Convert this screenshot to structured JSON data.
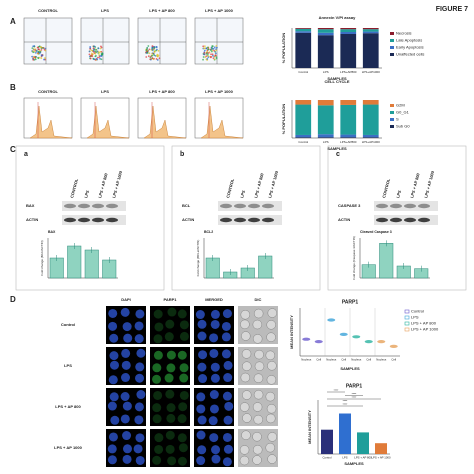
{
  "figure_label": "FIGURE 7",
  "panel_labels": [
    "A",
    "B",
    "C",
    "D"
  ],
  "sample_labels": [
    "CONTROL",
    "LPS",
    "LPS + AP 800",
    "LPS + AP 1000"
  ],
  "annexin": {
    "title": "Annexin V/PI assay",
    "y_label": "% POPULATION",
    "x_label": "SAMPLES",
    "categories": [
      "Control",
      "LPS",
      "LPS+AP800",
      "LPS+AP1000"
    ],
    "ylim": [
      0,
      100
    ],
    "series": [
      {
        "name": "Necrosis",
        "color": "#8b1c2c",
        "values": [
          2,
          3,
          3,
          3
        ]
      },
      {
        "name": "Late Apoptosis",
        "color": "#1f9e9a",
        "values": [
          6,
          9,
          7,
          6
        ]
      },
      {
        "name": "Early Apoptosis",
        "color": "#3b6fc4",
        "values": [
          4,
          6,
          5,
          4
        ]
      },
      {
        "name": "Unaffected cells",
        "color": "#1b2a55",
        "values": [
          88,
          82,
          85,
          87
        ]
      }
    ]
  },
  "cell_cycle": {
    "title": "CELL CYCLE",
    "y_label": "% POPULATION",
    "x_label": "SAMPLES",
    "categories": [
      "Control",
      "LPS",
      "LPS+AP800",
      "LPS+AP1000"
    ],
    "ylim": [
      0,
      100
    ],
    "series": [
      {
        "name": "G2M",
        "color": "#e07b39",
        "values": [
          12,
          14,
          13,
          12
        ]
      },
      {
        "name": "G0_G1",
        "color": "#1f9e9a",
        "values": [
          80,
          76,
          78,
          80
        ]
      },
      {
        "name": "S",
        "color": "#3b6fc4",
        "values": [
          6,
          8,
          7,
          6
        ]
      },
      {
        "name": "Sub G0",
        "color": "#1b2a55",
        "values": [
          2,
          2,
          2,
          2
        ]
      }
    ]
  },
  "blots": [
    {
      "sublabel": "a",
      "bands": [
        "BAX",
        "ACTIN"
      ],
      "chart_title": "BAX",
      "y_label": "Fold change (BAX/ACTIN)",
      "ylim": [
        0,
        2
      ],
      "values": [
        1.0,
        1.6,
        1.4,
        0.9
      ]
    },
    {
      "sublabel": "b",
      "bands": [
        "BCL",
        "ACTIN"
      ],
      "chart_title": "BCL2",
      "y_label": "Fold change (BCL2/ACTIN)",
      "ylim": [
        0,
        2
      ],
      "values": [
        1.0,
        0.3,
        0.5,
        1.1
      ]
    },
    {
      "sublabel": "c",
      "bands": [
        "CASPASE 3",
        "ACTIN"
      ],
      "chart_title": "Cleaved Caspase 3",
      "y_label": "Fold change (Caspase 3/ACTIN)",
      "ylim": [
        0,
        3
      ],
      "values": [
        1.0,
        2.6,
        0.9,
        0.7
      ]
    }
  ],
  "if_columns": [
    "DAPI",
    "PARP1",
    "MERGED",
    "DIC"
  ],
  "if_rows": [
    "Control",
    "LPS",
    "LPS + AP 800",
    "LPS + AP 1000"
  ],
  "parp_scatter": {
    "title": "PARP1",
    "y_label": "MEAN INTENSITY",
    "x_label": "SAMPLES",
    "groups": [
      "Nucleus",
      "Cell"
    ],
    "ylim": [
      0,
      1
    ],
    "series": [
      {
        "name": "Control",
        "color": "#6a5acd",
        "values": [
          0.35,
          0.3
        ]
      },
      {
        "name": "LPS",
        "color": "#3ba3d8",
        "values": [
          0.75,
          0.45
        ]
      },
      {
        "name": "LPS + AP 800",
        "color": "#2bb3a0",
        "values": [
          0.4,
          0.3
        ]
      },
      {
        "name": "LPS + AP 1000",
        "color": "#e6a15a",
        "values": [
          0.3,
          0.2
        ]
      }
    ]
  },
  "parp_bar": {
    "title": "PARP1",
    "y_label": "MEAN INTENSITY",
    "x_label": "SAMPLES",
    "ylim": [
      0,
      1
    ],
    "categories": [
      "Control",
      "LPS",
      "LPS + AP 800",
      "LPS + AP 1000"
    ],
    "values": [
      0.45,
      0.75,
      0.4,
      0.2
    ],
    "colors": [
      "#2a2f7a",
      "#2f6fd0",
      "#1f9e9a",
      "#e07b39"
    ],
    "significance": [
      "****",
      "****",
      "****",
      "****",
      "****"
    ]
  }
}
